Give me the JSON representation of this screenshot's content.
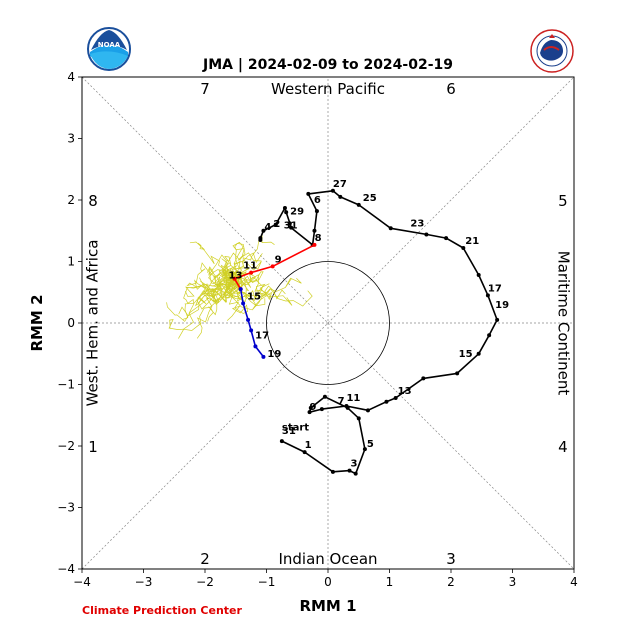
{
  "chart_data": {
    "type": "line",
    "title": "JMA | 2024-02-09 to 2024-02-19",
    "xlabel": "RMM 1",
    "ylabel": "RMM 2",
    "xlim": [
      -4,
      4
    ],
    "ylim": [
      -4,
      4
    ],
    "ticks": [
      "−4",
      "−3",
      "−2",
      "−1",
      "0",
      "1",
      "2",
      "3",
      "4"
    ],
    "tick_values": [
      -4,
      -3,
      -2,
      -1,
      0,
      1,
      2,
      3,
      4
    ],
    "grid": "dotted diagonals and axes",
    "unit_circle_radius": 1,
    "phase_numbers": [
      {
        "label": "7",
        "x": -2,
        "y": 3.82
      },
      {
        "label": "6",
        "x": 2,
        "y": 3.82
      },
      {
        "label": "8",
        "x": -3.82,
        "y": 2
      },
      {
        "label": "5",
        "x": 3.82,
        "y": 2
      },
      {
        "label": "1",
        "x": -3.82,
        "y": -2
      },
      {
        "label": "4",
        "x": 3.82,
        "y": -2
      },
      {
        "label": "2",
        "x": -2,
        "y": -3.82
      },
      {
        "label": "3",
        "x": 2,
        "y": -3.82
      }
    ],
    "region_labels": [
      {
        "label": "Western Pacific",
        "x": 0,
        "y": 3.82,
        "rotate": 0
      },
      {
        "label": "Indian Ocean",
        "x": 0,
        "y": -3.82,
        "rotate": 0
      },
      {
        "label": "West. Hem. and Africa",
        "x": -3.82,
        "y": 0,
        "rotate": -90
      },
      {
        "label": "Maritime Continent",
        "x": 3.82,
        "y": 0,
        "rotate": 90
      }
    ],
    "start_label": {
      "text": "start",
      "x": -0.75,
      "y": -1.75
    },
    "series": [
      {
        "color": "#000000",
        "points": [
          [
            -0.75,
            -1.92
          ],
          [
            -0.38,
            -2.1
          ],
          [
            0.08,
            -2.42
          ],
          [
            0.35,
            -2.4
          ],
          [
            0.45,
            -2.45
          ],
          [
            0.6,
            -2.05
          ],
          [
            0.5,
            -1.55
          ],
          [
            0.32,
            -1.38
          ],
          [
            -0.05,
            -1.2
          ],
          [
            -0.28,
            -1.38
          ],
          [
            -0.3,
            -1.45
          ],
          [
            -0.1,
            -1.4
          ],
          [
            0.3,
            -1.35
          ],
          [
            0.65,
            -1.42
          ],
          [
            0.95,
            -1.28
          ],
          [
            1.1,
            -1.22
          ],
          [
            1.55,
            -0.9
          ],
          [
            2.1,
            -0.82
          ],
          [
            2.45,
            -0.5
          ],
          [
            2.62,
            -0.2
          ],
          [
            2.75,
            0.05
          ],
          [
            2.6,
            0.45
          ],
          [
            2.45,
            0.78
          ],
          [
            2.2,
            1.22
          ],
          [
            1.92,
            1.38
          ],
          [
            1.6,
            1.44
          ],
          [
            1.02,
            1.54
          ],
          [
            0.5,
            1.92
          ],
          [
            0.2,
            2.05
          ],
          [
            0.08,
            2.15
          ],
          [
            -0.32,
            2.1
          ],
          [
            -0.18,
            1.82
          ],
          [
            -0.22,
            1.5
          ],
          [
            -0.25,
            1.27
          ],
          [
            -0.6,
            1.55
          ],
          [
            -0.62,
            1.62
          ],
          [
            -0.68,
            1.8
          ],
          [
            -0.7,
            1.87
          ],
          [
            -0.85,
            1.6
          ],
          [
            -1.05,
            1.5
          ],
          [
            -1.1,
            1.38
          ],
          [
            -1.1,
            1.35
          ]
        ],
        "labels": [
          {
            "text": "31",
            "index": 0,
            "dx": 0,
            "dy": -7
          },
          {
            "text": "1",
            "index": 1,
            "dx": 0,
            "dy": -4
          },
          {
            "text": "3",
            "index": 3,
            "dx": 1,
            "dy": -4
          },
          {
            "text": "5",
            "index": 5,
            "dx": 2,
            "dy": -2
          },
          {
            "text": "7",
            "index": 7,
            "dx": -10,
            "dy": -4
          },
          {
            "text": "9",
            "index": 10,
            "dx": 0,
            "dy": -2
          },
          {
            "text": "11",
            "index": 12,
            "dx": 0,
            "dy": -5
          },
          {
            "text": "13",
            "index": 15,
            "dx": 2,
            "dy": -4
          },
          {
            "text": "15",
            "index": 18,
            "dx": -20,
            "dy": 3
          },
          {
            "text": "17",
            "index": 21,
            "dx": 0,
            "dy": -4
          },
          {
            "text": "19",
            "index": 20,
            "dx": -2,
            "dy": -12
          },
          {
            "text": "21",
            "index": 23,
            "dx": 2,
            "dy": -4
          },
          {
            "text": "23",
            "index": 25,
            "dx": -16,
            "dy": -8
          },
          {
            "text": "25",
            "index": 27,
            "dx": 4,
            "dy": -4
          },
          {
            "text": "27",
            "index": 29,
            "dx": 0,
            "dy": -4
          },
          {
            "text": "29",
            "index": 36,
            "dx": 4,
            "dy": 2
          },
          {
            "text": "31",
            "index": 38,
            "dx": 8,
            "dy": 4
          },
          {
            "text": "6",
            "index": 31,
            "dx": -3,
            "dy": -8
          },
          {
            "text": "8",
            "index": 33,
            "dx": 2,
            "dy": -4
          },
          {
            "text": "4",
            "index": 40,
            "dx": 4,
            "dy": -8
          },
          {
            "text": "2",
            "index": 39,
            "dx": 10,
            "dy": -4
          }
        ]
      },
      {
        "color": "#ff0000",
        "points": [
          [
            -0.22,
            1.27
          ],
          [
            -0.9,
            0.92
          ],
          [
            -1.25,
            0.82
          ],
          [
            -1.52,
            0.72
          ],
          [
            -1.42,
            0.55
          ]
        ],
        "labels": [
          {
            "text": "9",
            "index": 1,
            "dx": 2,
            "dy": -4
          },
          {
            "text": "11",
            "index": 2,
            "dx": -8,
            "dy": -4
          },
          {
            "text": "13",
            "index": 3,
            "dx": -6,
            "dy": 0
          }
        ]
      },
      {
        "color": "#0000cc",
        "points": [
          [
            -1.42,
            0.55
          ],
          [
            -1.38,
            0.32
          ],
          [
            -1.3,
            0.05
          ],
          [
            -1.25,
            -0.12
          ],
          [
            -1.18,
            -0.38
          ],
          [
            -1.05,
            -0.55
          ]
        ],
        "labels": [
          {
            "text": "15",
            "index": 1,
            "dx": 4,
            "dy": -4
          },
          {
            "text": "17",
            "index": 3,
            "dx": 4,
            "dy": 8
          },
          {
            "text": "19",
            "index": 5,
            "dx": 4,
            "dy": 0
          }
        ]
      }
    ],
    "ensemble_color": "#c8c800",
    "ensemble_start": [
      -1.52,
      0.72
    ],
    "ensemble_count": 40
  },
  "credit": "Climate Prediction Center",
  "logos": {
    "left": {
      "name": "noaa-logo",
      "text": "NOAA"
    },
    "right": {
      "name": "nws-logo",
      "text": "NATIONAL WEATHER SERVICE"
    }
  }
}
